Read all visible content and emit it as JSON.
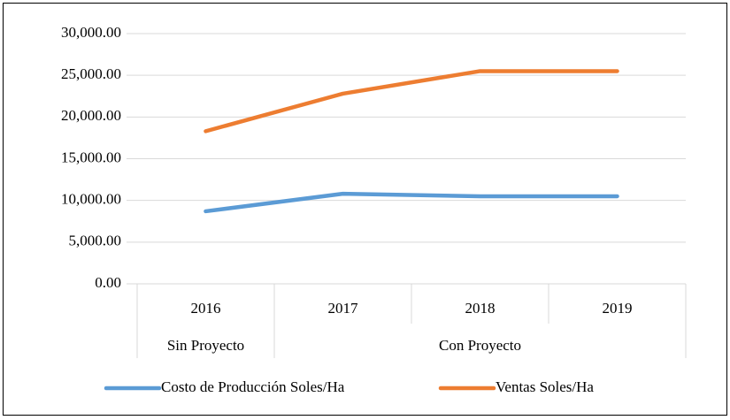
{
  "chart_data": {
    "type": "line",
    "categories": [
      "2016",
      "2017",
      "2018",
      "2019"
    ],
    "groups": [
      {
        "name": "Sin Proyecto",
        "count": 1
      },
      {
        "name": "Con Proyecto",
        "count": 3
      }
    ],
    "series": [
      {
        "name": "Costo de Producción Soles/Ha",
        "color": "#5b9bd5",
        "values": [
          8700,
          10800,
          10500,
          10500
        ]
      },
      {
        "name": "Ventas Soles/Ha",
        "color": "#ed7d31",
        "values": [
          18300,
          22800,
          25500,
          25500
        ]
      }
    ],
    "ylim": [
      0,
      30000
    ],
    "yticks": [
      {
        "value": 0,
        "label": "0.00"
      },
      {
        "value": 5000,
        "label": "5,000.00"
      },
      {
        "value": 10000,
        "label": "10,000.00"
      },
      {
        "value": 15000,
        "label": "15,000.00"
      },
      {
        "value": 20000,
        "label": "20,000.00"
      },
      {
        "value": 25000,
        "label": "25,000.00"
      },
      {
        "value": 30000,
        "label": "30,000.00"
      }
    ],
    "grid": true,
    "legend": "bottom"
  }
}
